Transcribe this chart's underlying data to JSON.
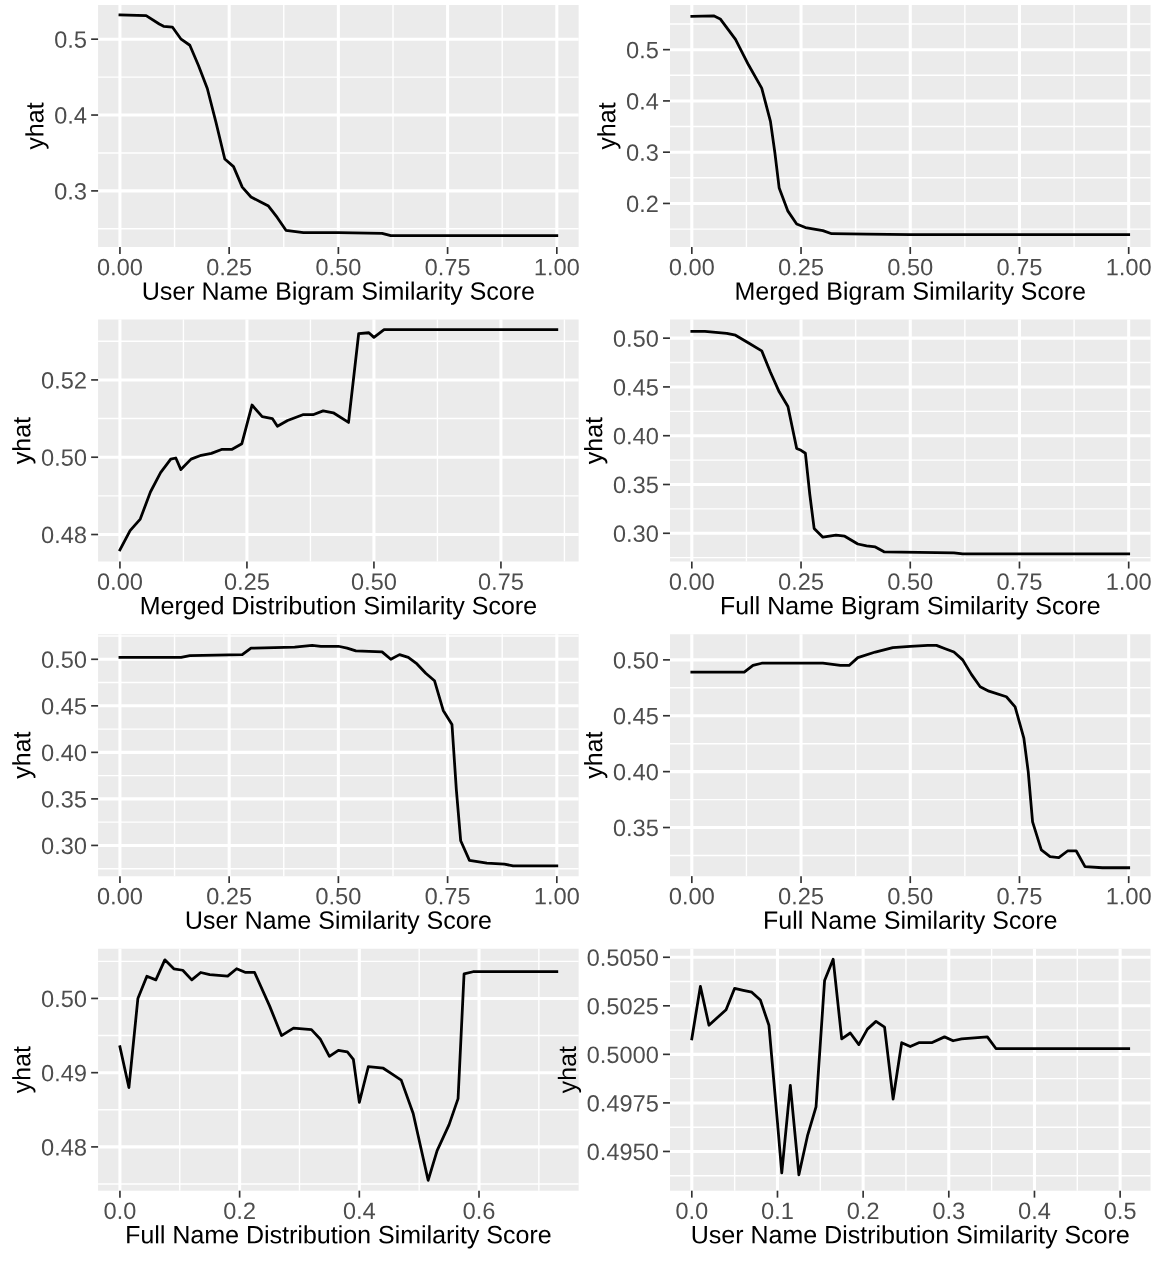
{
  "chart_data": [
    {
      "type": "line",
      "xlabel": "User Name Bigram Similarity Score",
      "ylabel": "yhat",
      "grid": true,
      "xlim": [
        -0.05,
        1.05
      ],
      "ylim": [
        0.226,
        0.545
      ],
      "xticks": [
        {
          "value": 0,
          "label": "0.00"
        },
        {
          "value": 0.25,
          "label": "0.25"
        },
        {
          "value": 0.5,
          "label": "0.50"
        },
        {
          "value": 0.75,
          "label": "0.75"
        },
        {
          "value": 1,
          "label": "1.00"
        }
      ],
      "yticks": [
        0.3,
        0.4,
        0.5
      ],
      "series": [
        {
          "color": "#000000",
          "x": [
            0,
            0.06,
            0.09,
            0.1,
            0.12,
            0.14,
            0.16,
            0.18,
            0.2,
            0.22,
            0.24,
            0.26,
            0.28,
            0.3,
            0.32,
            0.34,
            0.36,
            0.38,
            0.42,
            0.5,
            0.6,
            0.62,
            0.75,
            1.0
          ],
          "values": [
            0.532,
            0.531,
            0.52,
            0.517,
            0.516,
            0.5,
            0.492,
            0.465,
            0.435,
            0.39,
            0.342,
            0.332,
            0.305,
            0.292,
            0.286,
            0.28,
            0.265,
            0.248,
            0.245,
            0.245,
            0.244,
            0.241,
            0.241,
            0.241
          ]
        }
      ]
    },
    {
      "type": "line",
      "xlabel": "Merged Bigram Similarity Score",
      "ylabel": "yhat",
      "grid": true,
      "xlim": [
        -0.05,
        1.05
      ],
      "ylim": [
        0.115,
        0.587
      ],
      "xticks": [
        {
          "value": 0,
          "label": "0.00"
        },
        {
          "value": 0.25,
          "label": "0.25"
        },
        {
          "value": 0.5,
          "label": "0.50"
        },
        {
          "value": 0.75,
          "label": "0.75"
        },
        {
          "value": 1,
          "label": "1.00"
        }
      ],
      "yticks": [
        0.2,
        0.3,
        0.4,
        0.5
      ],
      "series": [
        {
          "color": "#000000",
          "x": [
            0,
            0.05,
            0.065,
            0.1,
            0.13,
            0.16,
            0.18,
            0.19,
            0.2,
            0.22,
            0.24,
            0.26,
            0.3,
            0.32,
            0.4,
            0.5,
            1.0
          ],
          "values": [
            0.565,
            0.566,
            0.56,
            0.52,
            0.47,
            0.425,
            0.36,
            0.3,
            0.23,
            0.185,
            0.16,
            0.153,
            0.147,
            0.141,
            0.14,
            0.139,
            0.139
          ]
        }
      ]
    },
    {
      "type": "line",
      "xlabel": "Merged Distribution Similarity Score",
      "ylabel": "yhat",
      "grid": true,
      "xlim": [
        -0.043,
        0.903
      ],
      "ylim": [
        0.473,
        0.5356
      ],
      "xticks": [
        {
          "value": 0,
          "label": "0.00"
        },
        {
          "value": 0.25,
          "label": "0.25"
        },
        {
          "value": 0.5,
          "label": "0.50"
        },
        {
          "value": 0.75,
          "label": "0.75"
        }
      ],
      "yticks": [
        {
          "value": 0.48,
          "label": "0.48"
        },
        {
          "value": 0.5,
          "label": "0.50"
        },
        {
          "value": 0.52,
          "label": "0.52"
        }
      ],
      "series": [
        {
          "color": "#000000",
          "x": [
            0,
            0.02,
            0.04,
            0.06,
            0.08,
            0.1,
            0.11,
            0.12,
            0.14,
            0.16,
            0.18,
            0.2,
            0.22,
            0.24,
            0.26,
            0.28,
            0.3,
            0.31,
            0.33,
            0.36,
            0.38,
            0.4,
            0.42,
            0.45,
            0.47,
            0.49,
            0.5,
            0.52,
            0.55,
            0.86
          ],
          "values": [
            0.476,
            0.481,
            0.484,
            0.491,
            0.496,
            0.4995,
            0.4998,
            0.4968,
            0.4995,
            0.5005,
            0.501,
            0.502,
            0.502,
            0.5035,
            0.5135,
            0.5105,
            0.51,
            0.508,
            0.5095,
            0.511,
            0.511,
            0.512,
            0.5115,
            0.509,
            0.532,
            0.5322,
            0.531,
            0.533,
            0.533,
            0.533
          ]
        }
      ]
    },
    {
      "type": "line",
      "xlabel": "Full Name Bigram Similarity Score",
      "ylabel": "yhat",
      "grid": true,
      "xlim": [
        -0.05,
        1.05
      ],
      "ylim": [
        0.271,
        0.519
      ],
      "xticks": [
        {
          "value": 0,
          "label": "0.00"
        },
        {
          "value": 0.25,
          "label": "0.25"
        },
        {
          "value": 0.5,
          "label": "0.50"
        },
        {
          "value": 0.75,
          "label": "0.75"
        },
        {
          "value": 1,
          "label": "1.00"
        }
      ],
      "yticks": [
        {
          "value": 0.3,
          "label": "0.30"
        },
        0.35,
        {
          "value": 0.4,
          "label": "0.40"
        },
        0.45,
        {
          "value": 0.5,
          "label": "0.50"
        }
      ],
      "series": [
        {
          "color": "#000000",
          "x": [
            0,
            0.03,
            0.08,
            0.1,
            0.13,
            0.16,
            0.18,
            0.2,
            0.22,
            0.24,
            0.25,
            0.26,
            0.27,
            0.28,
            0.3,
            0.33,
            0.35,
            0.38,
            0.4,
            0.42,
            0.44,
            0.6,
            0.62,
            1.0
          ],
          "values": [
            0.507,
            0.507,
            0.505,
            0.503,
            0.495,
            0.487,
            0.465,
            0.445,
            0.43,
            0.387,
            0.385,
            0.382,
            0.34,
            0.305,
            0.296,
            0.298,
            0.297,
            0.289,
            0.287,
            0.286,
            0.281,
            0.28,
            0.279,
            0.279
          ]
        }
      ]
    },
    {
      "type": "line",
      "xlabel": "User Name Similarity Score",
      "ylabel": "yhat",
      "grid": true,
      "xlim": [
        -0.05,
        1.05
      ],
      "ylim": [
        0.267,
        0.527
      ],
      "xticks": [
        {
          "value": 0,
          "label": "0.00"
        },
        {
          "value": 0.25,
          "label": "0.25"
        },
        {
          "value": 0.5,
          "label": "0.50"
        },
        {
          "value": 0.75,
          "label": "0.75"
        },
        {
          "value": 1,
          "label": "1.00"
        }
      ],
      "yticks": [
        {
          "value": 0.3,
          "label": "0.30"
        },
        0.35,
        {
          "value": 0.4,
          "label": "0.40"
        },
        0.45,
        {
          "value": 0.5,
          "label": "0.50"
        }
      ],
      "series": [
        {
          "color": "#000000",
          "x": [
            0,
            0.14,
            0.16,
            0.28,
            0.3,
            0.4,
            0.44,
            0.46,
            0.5,
            0.52,
            0.54,
            0.6,
            0.62,
            0.64,
            0.66,
            0.68,
            0.7,
            0.72,
            0.74,
            0.76,
            0.77,
            0.78,
            0.8,
            0.84,
            0.88,
            0.9,
            1.0
          ],
          "values": [
            0.502,
            0.502,
            0.504,
            0.505,
            0.512,
            0.513,
            0.515,
            0.514,
            0.514,
            0.512,
            0.509,
            0.508,
            0.5,
            0.505,
            0.502,
            0.495,
            0.485,
            0.477,
            0.445,
            0.43,
            0.36,
            0.305,
            0.284,
            0.281,
            0.28,
            0.278,
            0.278
          ]
        }
      ]
    },
    {
      "type": "line",
      "xlabel": "Full Name Similarity Score",
      "ylabel": "yhat",
      "grid": true,
      "xlim": [
        -0.05,
        1.05
      ],
      "ylim": [
        0.3065,
        0.523
      ],
      "xticks": [
        {
          "value": 0,
          "label": "0.00"
        },
        {
          "value": 0.25,
          "label": "0.25"
        },
        {
          "value": 0.5,
          "label": "0.50"
        },
        {
          "value": 0.75,
          "label": "0.75"
        },
        {
          "value": 1,
          "label": "1.00"
        }
      ],
      "yticks": [
        0.35,
        {
          "value": 0.4,
          "label": "0.40"
        },
        0.45,
        {
          "value": 0.5,
          "label": "0.50"
        }
      ],
      "series": [
        {
          "color": "#000000",
          "x": [
            0,
            0.12,
            0.14,
            0.16,
            0.3,
            0.34,
            0.36,
            0.38,
            0.42,
            0.46,
            0.5,
            0.54,
            0.56,
            0.58,
            0.6,
            0.62,
            0.64,
            0.66,
            0.68,
            0.72,
            0.74,
            0.76,
            0.77,
            0.78,
            0.8,
            0.82,
            0.84,
            0.86,
            0.88,
            0.9,
            0.94,
            1.0
          ],
          "values": [
            0.489,
            0.489,
            0.495,
            0.497,
            0.497,
            0.495,
            0.495,
            0.502,
            0.507,
            0.511,
            0.512,
            0.513,
            0.513,
            0.51,
            0.507,
            0.5,
            0.487,
            0.476,
            0.472,
            0.467,
            0.458,
            0.43,
            0.4,
            0.355,
            0.33,
            0.324,
            0.323,
            0.329,
            0.329,
            0.315,
            0.314,
            0.314
          ]
        }
      ]
    },
    {
      "type": "line",
      "xlabel": "Full Name Distribution Similarity Score",
      "ylabel": "yhat",
      "grid": true,
      "xlim": [
        -0.0365,
        0.7665
      ],
      "ylim": [
        0.4741,
        0.5067
      ],
      "xticks": [
        {
          "value": 0,
          "label": "0.0"
        },
        0.2,
        0.4,
        0.6
      ],
      "yticks": [
        0.48,
        0.49,
        {
          "value": 0.5,
          "label": "0.50"
        }
      ],
      "series": [
        {
          "color": "#000000",
          "x": [
            0,
            0.015,
            0.03,
            0.045,
            0.06,
            0.075,
            0.09,
            0.105,
            0.12,
            0.135,
            0.15,
            0.18,
            0.195,
            0.21,
            0.225,
            0.25,
            0.27,
            0.29,
            0.32,
            0.335,
            0.35,
            0.365,
            0.38,
            0.39,
            0.4,
            0.415,
            0.44,
            0.455,
            0.47,
            0.49,
            0.515,
            0.53,
            0.55,
            0.565,
            0.575,
            0.59,
            0.73
          ],
          "values": [
            0.4935,
            0.488,
            0.5,
            0.503,
            0.5025,
            0.5052,
            0.504,
            0.5038,
            0.5025,
            0.5035,
            0.5032,
            0.503,
            0.504,
            0.5035,
            0.5035,
            0.499,
            0.495,
            0.496,
            0.4958,
            0.4945,
            0.4922,
            0.493,
            0.4928,
            0.4918,
            0.486,
            0.4908,
            0.4906,
            0.4898,
            0.489,
            0.4845,
            0.4755,
            0.4795,
            0.483,
            0.4865,
            0.5033,
            0.5036,
            0.5036
          ]
        }
      ]
    },
    {
      "type": "line",
      "xlabel": "User Name Distribution Similarity Score",
      "ylabel": "yhat",
      "grid": true,
      "xlim": [
        -0.0255,
        0.5355
      ],
      "ylim": [
        0.49298,
        0.50544
      ],
      "xticks": [
        {
          "value": 0,
          "label": "0.0"
        },
        0.1,
        0.2,
        0.3,
        0.4,
        0.5
      ],
      "yticks": [
        {
          "value": 0.495,
          "label": "0.4950"
        },
        0.4975,
        {
          "value": 0.5,
          "label": "0.5000"
        },
        0.5025,
        {
          "value": 0.505,
          "label": "0.5050"
        }
      ],
      "series": [
        {
          "color": "#000000",
          "x": [
            0,
            0.01,
            0.02,
            0.04,
            0.05,
            0.06,
            0.07,
            0.08,
            0.09,
            0.1,
            0.105,
            0.115,
            0.125,
            0.135,
            0.145,
            0.155,
            0.165,
            0.175,
            0.185,
            0.195,
            0.205,
            0.215,
            0.225,
            0.235,
            0.245,
            0.255,
            0.265,
            0.28,
            0.295,
            0.305,
            0.315,
            0.345,
            0.355,
            0.51
          ],
          "values": [
            0.5008,
            0.5035,
            0.5015,
            0.5023,
            0.5034,
            0.5033,
            0.5032,
            0.5028,
            0.5015,
            0.4965,
            0.4939,
            0.4984,
            0.4938,
            0.4958,
            0.4973,
            0.5038,
            0.5049,
            0.5008,
            0.5011,
            0.5005,
            0.5013,
            0.5017,
            0.5014,
            0.4977,
            0.5006,
            0.5004,
            0.5006,
            0.5006,
            0.5009,
            0.5007,
            0.5008,
            0.5009,
            0.5003,
            0.5003
          ]
        }
      ]
    }
  ]
}
